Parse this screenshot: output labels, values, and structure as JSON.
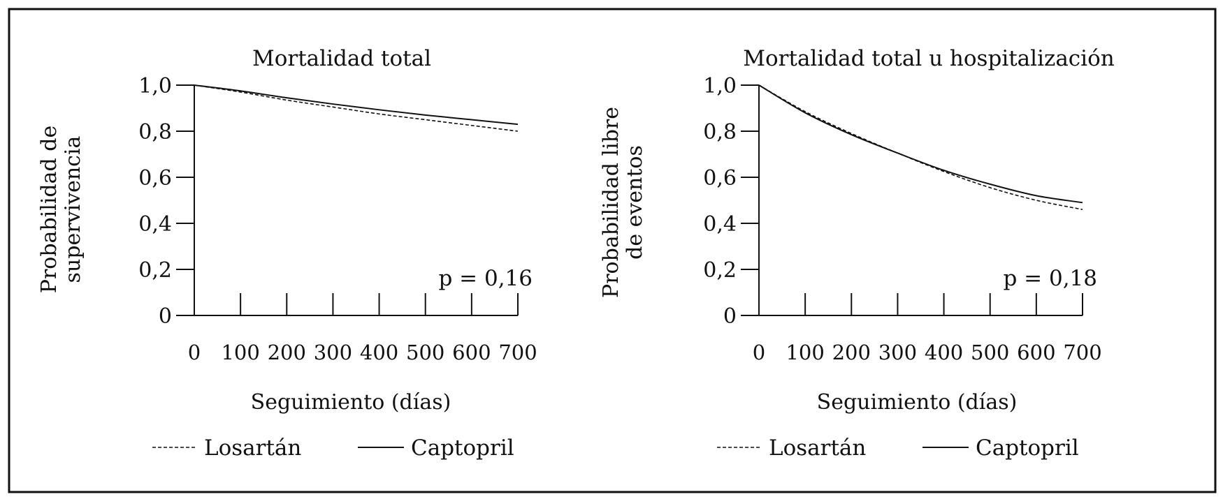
{
  "chart_data": [
    {
      "type": "line",
      "title": "Mortalidad total",
      "ylabel_lines": [
        "Probabilidad de",
        "supervivencia"
      ],
      "xlabel": "Seguimiento (días)",
      "x_ticks": [
        0,
        100,
        200,
        300,
        400,
        500,
        600,
        700
      ],
      "y_ticks": [
        "0",
        "0,2",
        "0,4",
        "0,6",
        "0,8",
        "1,0"
      ],
      "xlim": [
        0,
        700
      ],
      "ylim": [
        0,
        1.0
      ],
      "annotation": "p = 0,16",
      "legend": [
        "Losartán",
        "Captopril"
      ],
      "legend_placement": "bottom",
      "series": [
        {
          "name": "Losartán",
          "style": "dashed",
          "x": [
            0,
            100,
            200,
            300,
            400,
            500,
            600,
            700
          ],
          "y": [
            1.0,
            0.97,
            0.935,
            0.905,
            0.875,
            0.85,
            0.825,
            0.8
          ]
        },
        {
          "name": "Captopril",
          "style": "solid",
          "x": [
            0,
            100,
            200,
            300,
            400,
            500,
            600,
            700
          ],
          "y": [
            1.0,
            0.975,
            0.945,
            0.918,
            0.893,
            0.87,
            0.85,
            0.83
          ]
        }
      ]
    },
    {
      "type": "line",
      "title": "Mortalidad total u hospitalización",
      "ylabel_lines": [
        "Probabilidad libre",
        "de eventos"
      ],
      "xlabel": "Seguimiento (días)",
      "x_ticks": [
        0,
        100,
        200,
        300,
        400,
        500,
        600,
        700
      ],
      "y_ticks": [
        "0",
        "0,2",
        "0,4",
        "0,6",
        "0,8",
        "1,0"
      ],
      "xlim": [
        0,
        700
      ],
      "ylim": [
        0,
        1.0
      ],
      "annotation": "p = 0,18",
      "legend": [
        "Losartán",
        "Captopril"
      ],
      "legend_placement": "bottom",
      "series": [
        {
          "name": "Losartán",
          "style": "dashed",
          "x": [
            0,
            100,
            200,
            300,
            400,
            500,
            600,
            700
          ],
          "y": [
            1.0,
            0.885,
            0.79,
            0.705,
            0.625,
            0.555,
            0.5,
            0.46
          ]
        },
        {
          "name": "Captopril",
          "style": "solid",
          "x": [
            0,
            100,
            200,
            300,
            400,
            500,
            600,
            700
          ],
          "y": [
            1.0,
            0.88,
            0.785,
            0.705,
            0.63,
            0.57,
            0.52,
            0.49
          ]
        }
      ]
    }
  ]
}
